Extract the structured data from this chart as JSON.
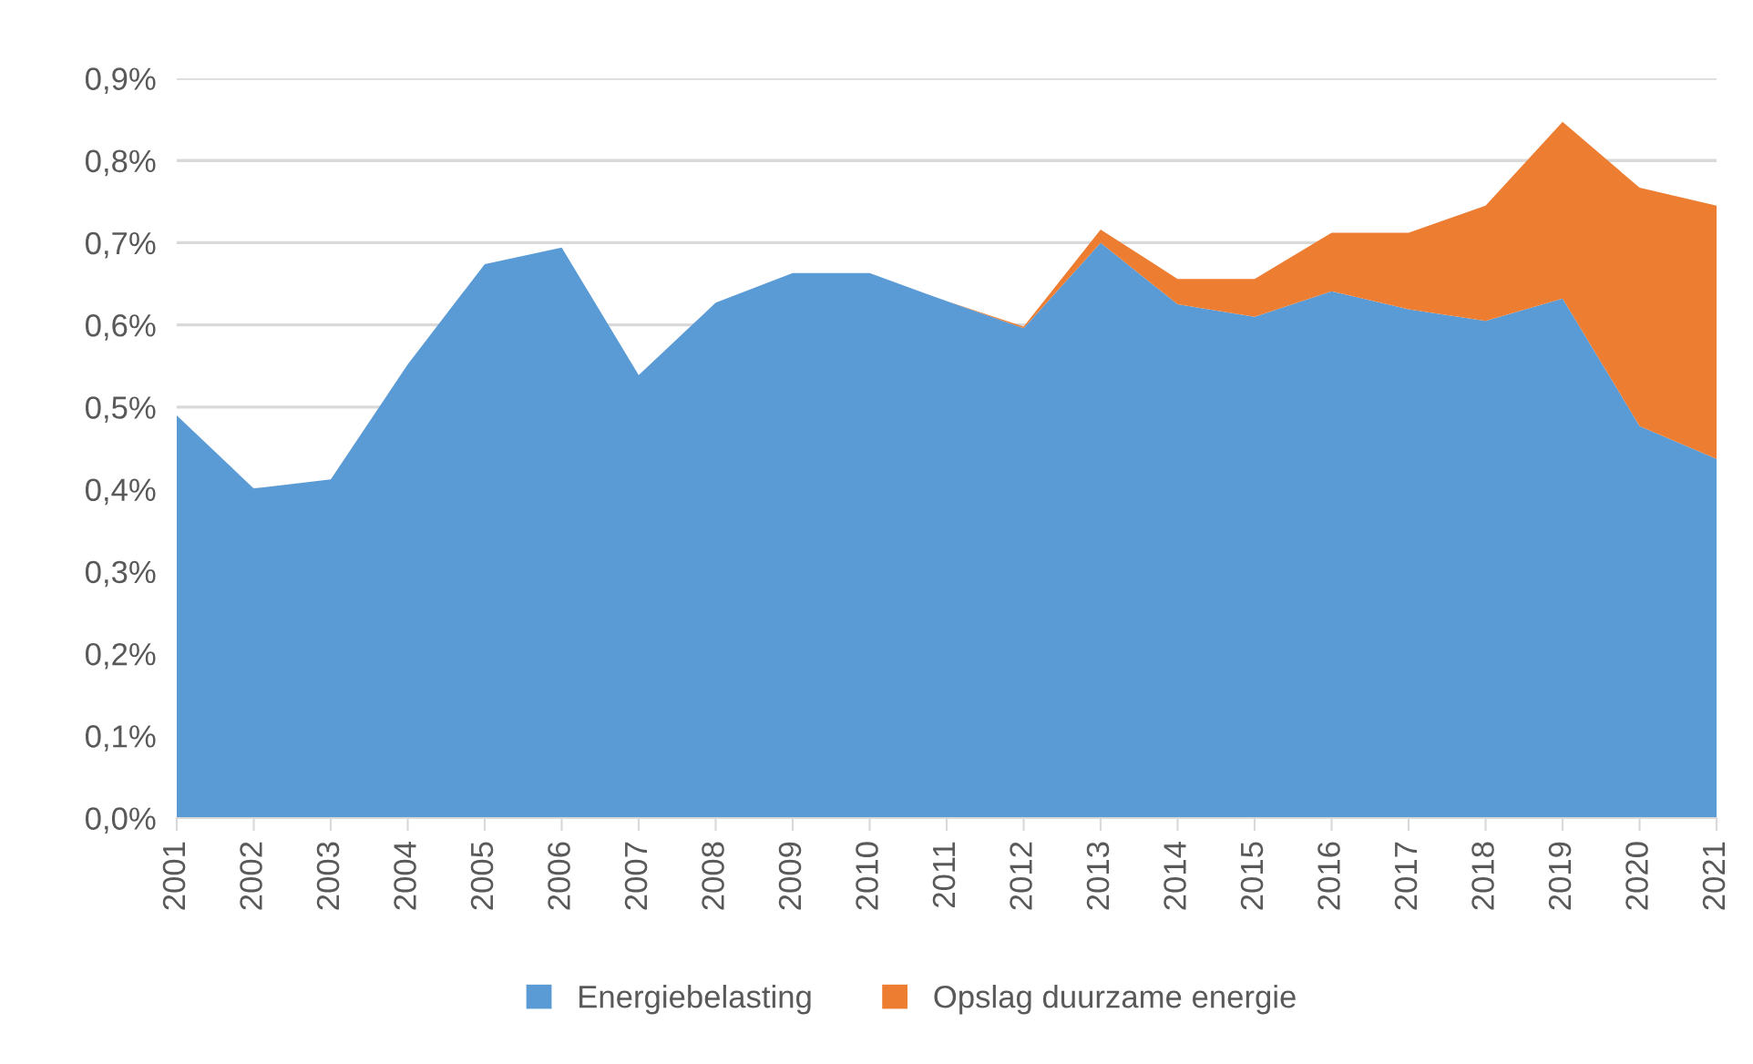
{
  "chart_data": {
    "type": "area",
    "stacked": true,
    "categories": [
      "2001",
      "2002",
      "2003",
      "2004",
      "2005",
      "2006",
      "2007",
      "2008",
      "2009",
      "2010",
      "2011",
      "2012",
      "2013",
      "2014",
      "2015",
      "2016",
      "2017",
      "2018",
      "2019",
      "2020",
      "2021"
    ],
    "series": [
      {
        "name": "Energiebelasting",
        "color": "#5b9bd5",
        "values": [
          0.49,
          0.401,
          0.412,
          0.552,
          0.674,
          0.694,
          0.539,
          0.627,
          0.663,
          0.663,
          0.629,
          0.596,
          0.7,
          0.625,
          0.61,
          0.641,
          0.619,
          0.605,
          0.632,
          0.477,
          0.437
        ]
      },
      {
        "name": "Opslag duurzame energie",
        "color": "#ed7d31",
        "values": [
          0,
          0,
          0,
          0,
          0,
          0,
          0,
          0,
          0,
          0,
          0,
          0.002,
          0.016,
          0.031,
          0.046,
          0.071,
          0.093,
          0.14,
          0.215,
          0.29,
          0.308
        ]
      }
    ],
    "ylim": [
      0,
      0.9
    ],
    "yticks": [
      {
        "value": 0,
        "label": "0,0%"
      },
      {
        "value": 0.1,
        "label": "0,1%"
      },
      {
        "value": 0.2,
        "label": "0,2%"
      },
      {
        "value": 0.3,
        "label": "0,3%"
      },
      {
        "value": 0.4,
        "label": "0,4%"
      },
      {
        "value": 0.5,
        "label": "0,5%"
      },
      {
        "value": 0.6,
        "label": "0,6%"
      },
      {
        "value": 0.7,
        "label": "0,7%"
      },
      {
        "value": 0.8,
        "label": "0,8%"
      },
      {
        "value": 0.9,
        "label": "0,9%"
      }
    ],
    "grid": "y",
    "legend": "bottom"
  }
}
